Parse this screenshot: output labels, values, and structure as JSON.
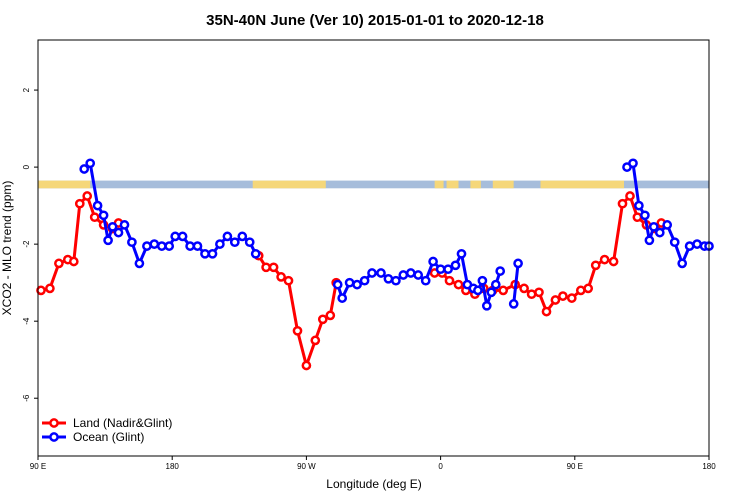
{
  "chart_data": {
    "type": "line",
    "title": "35N-40N June (Ver 10)   2015-01-01 to 2020-12-18",
    "xlabel": "Longitude (deg E)",
    "ylabel": "XCO2 - MLO trend (ppm)",
    "xlim": [
      90,
      540
    ],
    "ylim": [
      -7.5,
      3.3
    ],
    "x_ticks": [
      {
        "value": 90,
        "label": "90 E"
      },
      {
        "value": 180,
        "label": "180"
      },
      {
        "value": 270,
        "label": "90 W"
      },
      {
        "value": 360,
        "label": "0"
      },
      {
        "value": 450,
        "label": "90 E"
      },
      {
        "value": 540,
        "label": "180"
      }
    ],
    "y_ticks": [
      {
        "value": 2,
        "label": "2"
      },
      {
        "value": 0,
        "label": "0"
      },
      {
        "value": -2,
        "label": "-2"
      },
      {
        "value": -4,
        "label": "-4"
      },
      {
        "value": -6,
        "label": "-6"
      }
    ],
    "colors": {
      "land": "#ff0000",
      "ocean": "#0000ff",
      "land_strip": "#f5d77a",
      "ocean_strip": "#a6bddb"
    },
    "land_ocean_strip": {
      "y_range": [
        -0.35,
        -0.55
      ],
      "land_intervals": [
        [
          90,
          125
        ],
        [
          234,
          283
        ],
        [
          356,
          362
        ],
        [
          364,
          372
        ],
        [
          380,
          387
        ],
        [
          395,
          409
        ],
        [
          427,
          483
        ]
      ]
    },
    "legend_position": "bottom-left",
    "series": [
      {
        "name": "Land (Nadir&Glint)",
        "color": "#ff0000",
        "segments": [
          [
            [
              92,
              -3.2
            ],
            [
              98,
              -3.15
            ],
            [
              104,
              -2.5
            ],
            [
              110,
              -2.4
            ],
            [
              114,
              -2.45
            ],
            [
              118,
              -0.95
            ],
            [
              123,
              -0.75
            ],
            [
              128,
              -1.3
            ],
            [
              134,
              -1.5
            ],
            [
              140,
              -1.6
            ],
            [
              144,
              -1.45
            ]
          ],
          [
            [
              238,
              -2.3
            ],
            [
              243,
              -2.6
            ],
            [
              248,
              -2.6
            ],
            [
              253,
              -2.85
            ],
            [
              258,
              -2.95
            ],
            [
              264,
              -4.25
            ],
            [
              270,
              -5.15
            ],
            [
              276,
              -4.5
            ],
            [
              281,
              -3.95
            ],
            [
              286,
              -3.85
            ],
            [
              290,
              -3.0
            ]
          ],
          [
            [
              356,
              -2.75
            ],
            [
              361,
              -2.75
            ],
            [
              366,
              -2.95
            ],
            [
              372,
              -3.05
            ],
            [
              377,
              -3.2
            ],
            [
              383,
              -3.3
            ],
            [
              389,
              -3.15
            ],
            [
              395,
              -3.2
            ],
            [
              402,
              -3.2
            ],
            [
              410,
              -3.05
            ],
            [
              416,
              -3.15
            ],
            [
              421,
              -3.3
            ],
            [
              426,
              -3.25
            ],
            [
              431,
              -3.75
            ],
            [
              437,
              -3.45
            ],
            [
              442,
              -3.35
            ],
            [
              448,
              -3.4
            ],
            [
              454,
              -3.2
            ],
            [
              459,
              -3.15
            ],
            [
              464,
              -2.55
            ],
            [
              470,
              -2.4
            ],
            [
              476,
              -2.45
            ],
            [
              482,
              -0.95
            ],
            [
              487,
              -0.75
            ],
            [
              492,
              -1.3
            ],
            [
              498,
              -1.5
            ],
            [
              504,
              -1.6
            ],
            [
              508,
              -1.45
            ]
          ]
        ]
      },
      {
        "name": "Ocean (Glint)",
        "color": "#0000ff",
        "segments": [
          [
            [
              121,
              -0.05
            ],
            [
              125,
              0.1
            ],
            [
              130,
              -1.0
            ],
            [
              134,
              -1.25
            ],
            [
              137,
              -1.9
            ],
            [
              140,
              -1.55
            ],
            [
              144,
              -1.7
            ],
            [
              148,
              -1.5
            ],
            [
              153,
              -1.95
            ],
            [
              158,
              -2.5
            ],
            [
              163,
              -2.05
            ],
            [
              168,
              -2.0
            ],
            [
              173,
              -2.05
            ],
            [
              178,
              -2.05
            ],
            [
              182,
              -1.8
            ],
            [
              187,
              -1.8
            ],
            [
              192,
              -2.05
            ],
            [
              197,
              -2.05
            ],
            [
              202,
              -2.25
            ],
            [
              207,
              -2.25
            ],
            [
              212,
              -2.0
            ],
            [
              217,
              -1.8
            ],
            [
              222,
              -1.95
            ],
            [
              227,
              -1.8
            ],
            [
              232,
              -1.95
            ],
            [
              236,
              -2.25
            ]
          ],
          [
            [
              291,
              -3.05
            ],
            [
              294,
              -3.4
            ],
            [
              299,
              -3.0
            ],
            [
              304,
              -3.05
            ],
            [
              309,
              -2.95
            ],
            [
              314,
              -2.75
            ],
            [
              320,
              -2.75
            ],
            [
              325,
              -2.9
            ],
            [
              330,
              -2.95
            ],
            [
              335,
              -2.8
            ],
            [
              340,
              -2.75
            ],
            [
              345,
              -2.8
            ],
            [
              350,
              -2.95
            ],
            [
              355,
              -2.45
            ],
            [
              360,
              -2.65
            ],
            [
              365,
              -2.65
            ],
            [
              370,
              -2.55
            ],
            [
              374,
              -2.25
            ],
            [
              378,
              -3.05
            ],
            [
              382,
              -3.15
            ],
            [
              385,
              -3.2
            ],
            [
              388,
              -2.95
            ],
            [
              391,
              -3.6
            ],
            [
              394,
              -3.25
            ],
            [
              397,
              -3.05
            ],
            [
              400,
              -2.7
            ]
          ],
          [
            [
              409,
              -3.55
            ],
            [
              412,
              -2.5
            ]
          ],
          [
            [
              485,
              -0.0
            ],
            [
              489,
              0.1
            ],
            [
              493,
              -1.0
            ],
            [
              497,
              -1.25
            ],
            [
              500,
              -1.9
            ],
            [
              503,
              -1.55
            ],
            [
              507,
              -1.7
            ],
            [
              512,
              -1.5
            ],
            [
              517,
              -1.95
            ],
            [
              522,
              -2.5
            ],
            [
              527,
              -2.05
            ],
            [
              532,
              -2.0
            ],
            [
              537,
              -2.05
            ],
            [
              540,
              -2.05
            ]
          ]
        ]
      }
    ]
  }
}
